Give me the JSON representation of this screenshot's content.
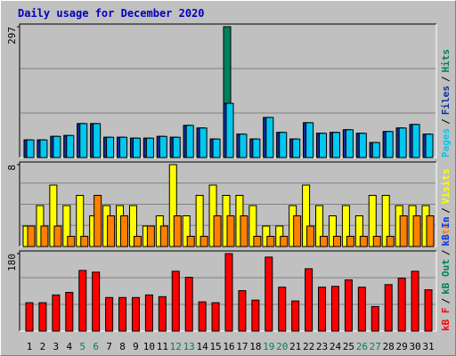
{
  "chart_data": {
    "type": "bar",
    "title": "Daily usage for December 2020",
    "categories": [
      "1",
      "2",
      "3",
      "4",
      "5",
      "6",
      "7",
      "8",
      "9",
      "10",
      "11",
      "12",
      "13",
      "14",
      "15",
      "16",
      "17",
      "18",
      "19",
      "20",
      "21",
      "22",
      "23",
      "24",
      "25",
      "26",
      "27",
      "28",
      "29",
      "30",
      "31"
    ],
    "category_colors": [
      "#000000",
      "#000000",
      "#000000",
      "#000000",
      "#00805c",
      "#00805c",
      "#000000",
      "#000000",
      "#000000",
      "#000000",
      "#000000",
      "#00805c",
      "#00805c",
      "#000000",
      "#000000",
      "#000000",
      "#000000",
      "#000000",
      "#00805c",
      "#00805c",
      "#000000",
      "#000000",
      "#000000",
      "#000000",
      "#000000",
      "#00805c",
      "#00805c",
      "#000000",
      "#000000",
      "#000000",
      "#000000"
    ],
    "legend_separator": "/",
    "panels": [
      {
        "ylim": [
          0,
          297
        ],
        "yticks": [
          297
        ],
        "series": [
          {
            "name": "Hits",
            "color": "#00805c",
            "values": [
              40,
              40,
              48,
              50,
              77,
              77,
              46,
              46,
              44,
              44,
              48,
              46,
              73,
              67,
              42,
              297,
              53,
              42,
              91,
              57,
              42,
              79,
              55,
              57,
              63,
              55,
              34,
              59,
              67,
              75,
              53
            ]
          },
          {
            "name": "Files",
            "color": "#1030a0",
            "values": [
              40,
              40,
              48,
              50,
              77,
              77,
              46,
              46,
              44,
              44,
              48,
              46,
              73,
              67,
              42,
              123,
              53,
              42,
              91,
              57,
              42,
              79,
              55,
              57,
              63,
              55,
              34,
              59,
              67,
              75,
              53
            ]
          },
          {
            "name": "Pages",
            "color": "#00c8f0",
            "values": [
              40,
              40,
              48,
              50,
              77,
              77,
              46,
              46,
              44,
              44,
              48,
              46,
              73,
              67,
              42,
              123,
              53,
              42,
              91,
              57,
              42,
              79,
              55,
              57,
              63,
              55,
              34,
              59,
              67,
              75,
              53
            ]
          }
        ]
      },
      {
        "ylim": [
          0,
          8
        ],
        "yticks": [
          8
        ],
        "series": [
          {
            "name": "Visits",
            "color": "#ffff00",
            "values": [
              2,
              4,
              6,
              4,
              5,
              3,
              4,
              4,
              4,
              2,
              3,
              8,
              3,
              5,
              6,
              5,
              5,
              4,
              2,
              2,
              4,
              6,
              4,
              3,
              4,
              3,
              5,
              5,
              4,
              4,
              4
            ]
          },
          {
            "name": "Sites",
            "color": "#ff8000",
            "values": [
              2,
              2,
              2,
              1,
              1,
              5,
              3,
              3,
              1,
              2,
              2,
              3,
              1,
              1,
              3,
              3,
              3,
              1,
              1,
              1,
              3,
              2,
              1,
              1,
              1,
              1,
              1,
              1,
              3,
              3,
              3
            ]
          }
        ]
      },
      {
        "ylim": [
          0,
          180
        ],
        "yticks": [
          180
        ],
        "series": [
          {
            "name": "kB In",
            "color": "#0040ff",
            "values": [
              0,
              0,
              0,
              0,
              0,
              0,
              0,
              0,
              0,
              0,
              0,
              0,
              0,
              0,
              0,
              0,
              0,
              0,
              0,
              0,
              0,
              0,
              0,
              0,
              0,
              0,
              0,
              0,
              0,
              0,
              0
            ]
          },
          {
            "name": "kB Out",
            "color": "#00805c",
            "values": [
              0,
              0,
              0,
              0,
              0,
              0,
              0,
              0,
              0,
              0,
              0,
              0,
              0,
              0,
              0,
              0,
              0,
              0,
              0,
              0,
              0,
              0,
              0,
              0,
              0,
              0,
              0,
              0,
              0,
              0,
              0
            ]
          },
          {
            "name": "kB F",
            "color": "#ff0000",
            "values": [
              66,
              66,
              84,
              90,
              141,
              137,
              78,
              78,
              78,
              84,
              80,
              139,
              125,
              68,
              66,
              180,
              94,
              72,
              172,
              102,
              70,
              145,
              102,
              104,
              119,
              102,
              57,
              108,
              123,
              139,
              96
            ]
          }
        ]
      }
    ]
  }
}
